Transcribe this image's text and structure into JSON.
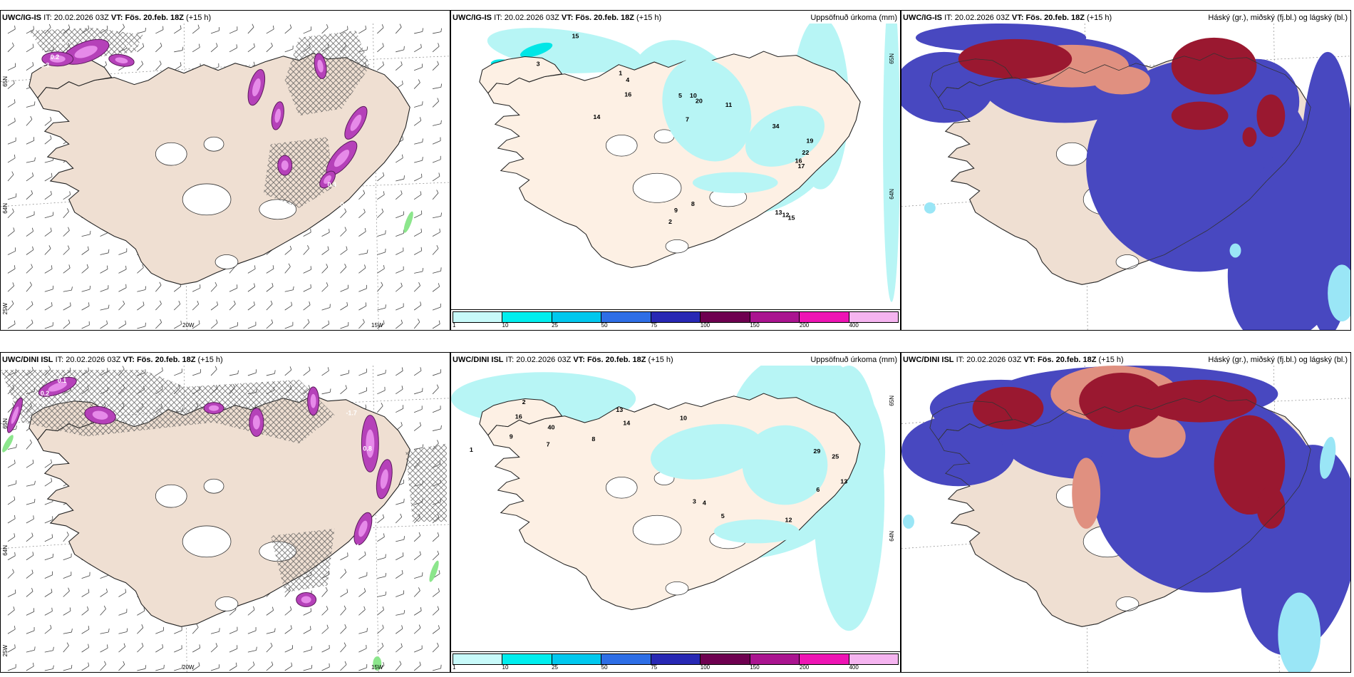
{
  "colors": {
    "land": "#efdfd2",
    "land_precip": "#fdf0e4",
    "precip_light": "#b7f5f5",
    "precip_mid": "#00e6e6",
    "snow_purple": "#b541b9",
    "snow_light": "#e68ae9",
    "cloud_high": "#9a1830",
    "cloud_mid": "#e09080",
    "cloud_low": "#4848c0",
    "cloud_cyan": "#9ae6f6"
  },
  "rows": [
    {
      "model": "UWC/IG-IS",
      "panels": [
        {
          "type": "weather",
          "it_label": "IT:",
          "it_value": "20.02.2026 03Z",
          "vt_label": "VT:",
          "vt_value": "Fös. 20.feb. 18Z",
          "lead": "(+15 h)",
          "right_title": "",
          "lon_labels": [
            "20W",
            "15W"
          ],
          "lat_labels": [
            "65N",
            "64N",
            "25W"
          ],
          "values": [
            "0.7",
            "0.2",
            "0.3",
            "0.5",
            "0.6",
            "0.4"
          ]
        },
        {
          "type": "precip",
          "it_label": "IT:",
          "it_value": "20.02.2026 03Z",
          "vt_label": "VT:",
          "vt_value": "Fös. 20.feb. 18Z",
          "lead": "(+15 h)",
          "right_title": "Uppsöfnuð úrkoma (mm)",
          "lat_labels": [
            "65N",
            "64N"
          ],
          "values": [
            "15",
            "3",
            "4",
            "1",
            "16",
            "14",
            "10",
            "20",
            "11",
            "34",
            "19",
            "22",
            "16",
            "17",
            "12",
            "15",
            "13",
            "8",
            "9",
            "2",
            "5",
            "7"
          ]
        },
        {
          "type": "cloud",
          "it_label": "IT:",
          "it_value": "20.02.2026 03Z",
          "vt_label": "VT:",
          "vt_value": "Fös. 20.feb. 18Z",
          "lead": "(+15 h)",
          "right_title": "Háský (gr.), miðský (fj.bl.) og lágský (bl.)"
        }
      ]
    },
    {
      "model": "UWC/DINI ISL",
      "panels": [
        {
          "type": "weather",
          "it_label": "IT:",
          "it_value": "20.02.2026 03Z",
          "vt_label": "VT:",
          "vt_value": "Fös. 20.feb. 18Z",
          "lead": "(+15 h)",
          "right_title": "",
          "lon_labels": [
            "20W",
            "15W"
          ],
          "lat_labels": [
            "65N",
            "64N",
            "25W"
          ],
          "values": [
            "0.1",
            "0.2",
            "0.3",
            "-1.7",
            "0.4",
            "0.8"
          ]
        },
        {
          "type": "precip",
          "it_label": "IT:",
          "it_value": "20.02.2026 03Z",
          "vt_label": "VT:",
          "vt_value": "Fös. 20.feb. 18Z",
          "lead": "(+15 h)",
          "right_title": "Uppsöfnuð úrkoma (mm)",
          "lat_labels": [
            "65N",
            "64N"
          ],
          "values": [
            "2",
            "16",
            "40",
            "13",
            "14",
            "8",
            "10",
            "29",
            "25",
            "13",
            "6",
            "5",
            "4",
            "3",
            "1",
            "9",
            "7",
            "12"
          ]
        },
        {
          "type": "cloud",
          "it_label": "IT:",
          "it_value": "20.02.2026 03Z",
          "vt_label": "VT:",
          "vt_value": "Fös. 20.feb. 18Z",
          "lead": "(+15 h)",
          "right_title": "Háský (gr.), miðský (fj.bl.) og lágský (bl.)"
        }
      ]
    }
  ],
  "legend": {
    "ticks": [
      "1",
      "10",
      "25",
      "50",
      "75",
      "100",
      "150",
      "200",
      "400"
    ],
    "colors": [
      "#c8fafa",
      "#00eeee",
      "#00c8ee",
      "#2e6ee6",
      "#2828b4",
      "#6e0050",
      "#aa1490",
      "#ee14b4",
      "#f5b4f0"
    ]
  }
}
